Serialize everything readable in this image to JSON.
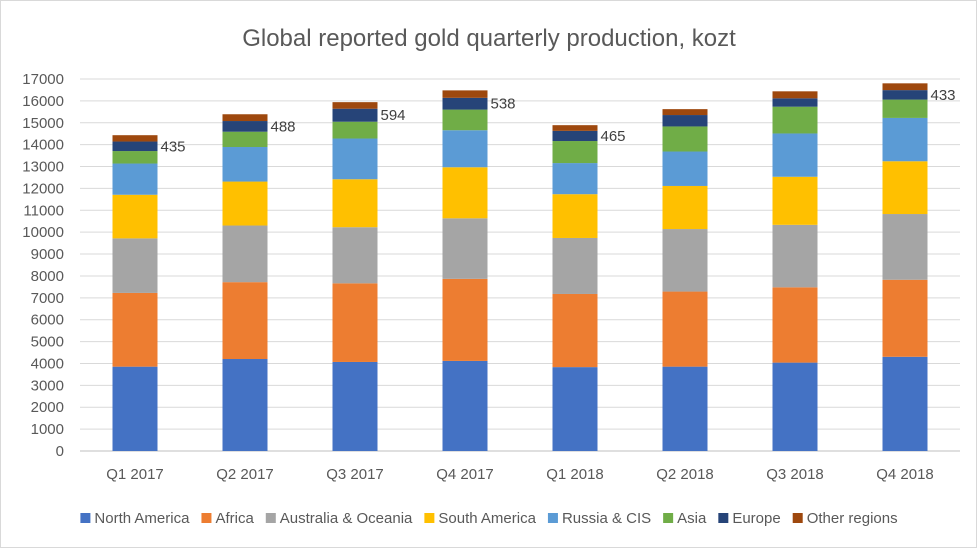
{
  "chart_data": {
    "type": "bar",
    "stacked": true,
    "title": "Global reported gold quarterly production, kozt",
    "xlabel": "",
    "ylabel": "",
    "ylim": [
      0,
      17000
    ],
    "yticks": [
      0,
      1000,
      2000,
      3000,
      4000,
      5000,
      6000,
      7000,
      8000,
      9000,
      10000,
      11000,
      12000,
      13000,
      14000,
      15000,
      16000,
      17000
    ],
    "grid": true,
    "legend_position": "bottom",
    "categories": [
      "Q1 2017",
      "Q2 2017",
      "Q3 2017",
      "Q4 2017",
      "Q1 2018",
      "Q2 2018",
      "Q3 2018",
      "Q4 2018"
    ],
    "series": [
      {
        "name": "North America",
        "color": "#4472c4",
        "labeled": true,
        "values": [
          3854,
          4204,
          4069,
          4117,
          3833,
          3855,
          4039,
          4305
        ]
      },
      {
        "name": "Africa",
        "color": "#ed7d31",
        "labeled": true,
        "values": [
          3370,
          3512,
          3593,
          3750,
          3343,
          3431,
          3441,
          3521
        ]
      },
      {
        "name": "Australia & Oceania",
        "color": "#a5a5a5",
        "labeled": true,
        "values": [
          2493,
          2588,
          2565,
          2767,
          2559,
          2857,
          2855,
          3003
        ]
      },
      {
        "name": "South America",
        "color": "#ffc000",
        "labeled": true,
        "values": [
          1993,
          2009,
          2192,
          2333,
          2001,
          1969,
          2197,
          2412
        ]
      },
      {
        "name": "Russia & CIS",
        "color": "#5b9bd5",
        "labeled": true,
        "values": [
          1427,
          1579,
          1861,
          1692,
          1422,
          1574,
          1979,
          1980
        ]
      },
      {
        "name": "Asia",
        "color": "#70ad47",
        "labeled": true,
        "values": [
          570,
          699,
          768,
          943,
          1007,
          1146,
          1224,
          838
        ]
      },
      {
        "name": "Europe",
        "color": "#264478",
        "labeled": true,
        "values": [
          435,
          488,
          594,
          538,
          465,
          521,
          382,
          433
        ]
      },
      {
        "name": "Other regions",
        "color": "#9e480e",
        "labeled": false,
        "values": [
          290,
          310,
          300,
          340,
          260,
          270,
          320,
          310
        ]
      }
    ]
  }
}
